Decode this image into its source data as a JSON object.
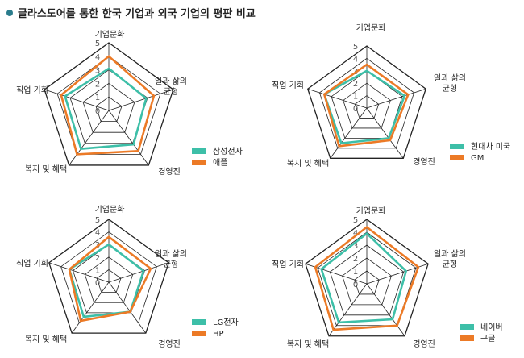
{
  "title": "글라스도어를 통한 한국 기업과 외국 기업의 평판 비교",
  "colors": {
    "teal": "#3dbfa8",
    "orange": "#ec7a26",
    "grid": "#222222",
    "tick": "#555555"
  },
  "chart_data": [
    {
      "type": "radar",
      "axes": [
        "기업문화",
        "일과 삶의 균형",
        "경영진",
        "복지 및 혜택",
        "직업 기회"
      ],
      "ticks": [
        "0",
        "1",
        "2",
        "3",
        "4",
        "5"
      ],
      "range": [
        0,
        5
      ],
      "series": [
        {
          "name": "삼성전자",
          "color": "#3dbfa8",
          "values": [
            3.1,
            2.9,
            3.1,
            3.5,
            3.4
          ]
        },
        {
          "name": "애플",
          "color": "#ec7a26",
          "values": [
            4.0,
            3.5,
            3.7,
            4.0,
            3.7
          ]
        }
      ]
    },
    {
      "type": "radar",
      "axes": [
        "기업문화",
        "일과 삶의 균형",
        "경영진",
        "복지 및 혜택",
        "직업 기회"
      ],
      "ticks": [
        "0",
        "1",
        "2",
        "3",
        "4",
        "5"
      ],
      "range": [
        0,
        5
      ],
      "series": [
        {
          "name": "현대차 미국",
          "color": "#3dbfa8",
          "values": [
            3.0,
            3.2,
            3.0,
            3.5,
            3.6
          ]
        },
        {
          "name": "GM",
          "color": "#ec7a26",
          "values": [
            3.5,
            3.5,
            3.2,
            3.8,
            3.6
          ]
        }
      ]
    },
    {
      "type": "radar",
      "axes": [
        "기업문화",
        "일과 삶의 균형",
        "경영진",
        "복지 및 혜택",
        "직업 기회"
      ],
      "ticks": [
        "0",
        "1",
        "2",
        "3",
        "4",
        "5"
      ],
      "range": [
        0,
        5
      ],
      "series": [
        {
          "name": "LG전자",
          "color": "#3dbfa8",
          "values": [
            3.0,
            2.9,
            2.9,
            3.4,
            3.3
          ]
        },
        {
          "name": "HP",
          "color": "#ec7a26",
          "values": [
            3.6,
            3.5,
            2.9,
            3.8,
            3.3
          ]
        }
      ]
    },
    {
      "type": "radar",
      "axes": [
        "기업문화",
        "일과 삶의 균형",
        "경영진",
        "복지 및 혜택",
        "직업 기회"
      ],
      "ticks": [
        "0",
        "1",
        "2",
        "3",
        "4",
        "5"
      ],
      "range": [
        0,
        5
      ],
      "series": [
        {
          "name": "네이버",
          "color": "#3dbfa8",
          "values": [
            3.9,
            3.2,
            3.4,
            3.7,
            3.7
          ]
        },
        {
          "name": "구글",
          "color": "#ec7a26",
          "values": [
            4.4,
            4.2,
            4.0,
            4.4,
            4.2
          ]
        }
      ]
    }
  ]
}
